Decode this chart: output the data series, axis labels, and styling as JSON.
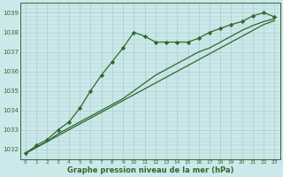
{
  "title": "Graphe pression niveau de la mer (hPa)",
  "bg_color": "#cce8ea",
  "grid_color": "#aacccc",
  "line_color": "#2d6a2d",
  "xlim": [
    -0.5,
    23.5
  ],
  "ylim": [
    1031.5,
    1039.5
  ],
  "yticks": [
    1032,
    1033,
    1034,
    1035,
    1036,
    1037,
    1038,
    1039
  ],
  "xticks": [
    0,
    1,
    2,
    3,
    4,
    5,
    6,
    7,
    8,
    9,
    10,
    11,
    12,
    13,
    14,
    15,
    16,
    17,
    18,
    19,
    20,
    21,
    22,
    23
  ],
  "series": [
    {
      "x": [
        0,
        1,
        2,
        3,
        4,
        5,
        6,
        7,
        8,
        9,
        10,
        11,
        12,
        13,
        14,
        15,
        16,
        17,
        18,
        19,
        20,
        21,
        22,
        23
      ],
      "y": [
        1031.8,
        1032.1,
        1032.4,
        1032.7,
        1033.0,
        1033.3,
        1033.6,
        1033.9,
        1034.2,
        1034.5,
        1034.8,
        1035.1,
        1035.4,
        1035.7,
        1036.0,
        1036.3,
        1036.6,
        1036.9,
        1037.2,
        1037.5,
        1037.8,
        1038.1,
        1038.4,
        1038.6
      ],
      "marker": null
    },
    {
      "x": [
        0,
        1,
        2,
        3,
        4,
        5,
        6,
        7,
        8,
        9,
        10,
        11,
        12,
        13,
        14,
        15,
        16,
        17,
        18,
        19,
        20,
        21,
        22,
        23
      ],
      "y": [
        1031.8,
        1032.1,
        1032.4,
        1032.8,
        1033.1,
        1033.4,
        1033.7,
        1034.0,
        1034.3,
        1034.6,
        1035.0,
        1035.4,
        1035.8,
        1036.1,
        1036.4,
        1036.7,
        1037.0,
        1037.2,
        1037.5,
        1037.8,
        1038.1,
        1038.35,
        1038.55,
        1038.7
      ],
      "marker": null
    },
    {
      "x": [
        0,
        1,
        2,
        3,
        4,
        5,
        6,
        7,
        8,
        9,
        10,
        11,
        12,
        13,
        14,
        15,
        16,
        17,
        18,
        19,
        20,
        21,
        22,
        23
      ],
      "y": [
        1031.8,
        1032.2,
        1032.5,
        1033.0,
        1033.4,
        1034.1,
        1035.0,
        1035.8,
        1036.5,
        1037.2,
        1038.0,
        1037.8,
        1037.5,
        1037.5,
        1037.5,
        1037.5,
        1037.7,
        1038.0,
        1038.2,
        1038.4,
        1038.55,
        1038.85,
        1039.0,
        1038.8
      ],
      "marker": "D"
    }
  ]
}
